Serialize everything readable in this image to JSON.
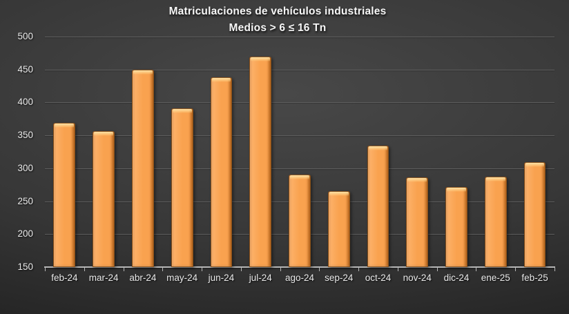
{
  "chart_data": {
    "type": "bar",
    "title": "Matriculaciones de vehículos industriales",
    "subtitle": "Medios > 6 ≤ 16 Tn",
    "categories": [
      "feb-24",
      "mar-24",
      "abr-24",
      "may-24",
      "jun-24",
      "jul-24",
      "ago-24",
      "sep-24",
      "oct-24",
      "nov-24",
      "dic-24",
      "ene-25",
      "feb-25"
    ],
    "values": [
      369,
      356,
      450,
      391,
      438,
      470,
      290,
      265,
      334,
      286,
      272,
      287,
      309
    ],
    "xlabel": "",
    "ylabel": "",
    "ylim": [
      150,
      500
    ],
    "y_ticks": [
      500,
      450,
      400,
      350,
      300,
      250,
      200,
      150
    ],
    "grid": true,
    "legend": false,
    "colors": {
      "bar_fill": "#F9A24F",
      "bar_fill_light": "#FCAF66",
      "bar_fill_dark": "#E08631",
      "bar_highlight": "#FFE3A6",
      "background_center": "#484848",
      "background_mid": "#373737",
      "background_edge": "#1D1D1D",
      "gridline": "#5E5E5E",
      "axis_line": "#B8B8B8",
      "label_text": "#E9E9E9",
      "title_text": "#F7F7F7"
    }
  }
}
